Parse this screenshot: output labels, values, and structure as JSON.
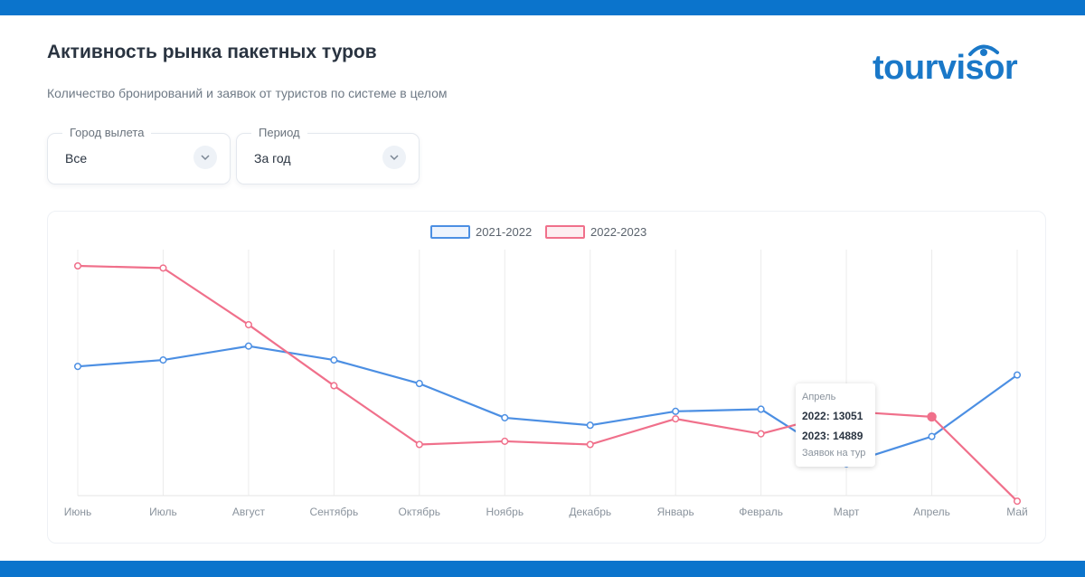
{
  "header": {
    "title": "Активность рынка пакетных туров",
    "subtitle": "Количество бронирований и заявок от туристов по системе в целом",
    "logo_text": "tourvisor"
  },
  "filters": [
    {
      "label": "Город вылета",
      "value": "Все"
    },
    {
      "label": "Период",
      "value": "За год"
    }
  ],
  "colors": {
    "brand": "#0b74cc",
    "series_2021_2022": "#4c8fe3",
    "series_2022_2023": "#f0708b"
  },
  "tooltip": {
    "month": "Апрель",
    "line1": "2022: 13051",
    "line2": "2023: 14889",
    "note": "Заявок на тур"
  },
  "chart_data": {
    "type": "line",
    "categories": [
      "Июнь",
      "Июль",
      "Август",
      "Сентябрь",
      "Октябрь",
      "Ноябрь",
      "Декабрь",
      "Январь",
      "Февраль",
      "Март",
      "Апрель",
      "Май"
    ],
    "ylim": [
      6000,
      29000
    ],
    "grid": "vertical",
    "legend_position": "top-center",
    "series": [
      {
        "name": "2021-2022",
        "values": [
          19600,
          20200,
          21500,
          20200,
          18000,
          14800,
          14100,
          15400,
          15600,
          10500,
          13051,
          18800
        ]
      },
      {
        "name": "2022-2023",
        "values": [
          29000,
          28800,
          23500,
          17800,
          12300,
          12600,
          12300,
          14700,
          13300,
          15400,
          14889,
          7000
        ]
      }
    ],
    "highlight_index": 10
  }
}
